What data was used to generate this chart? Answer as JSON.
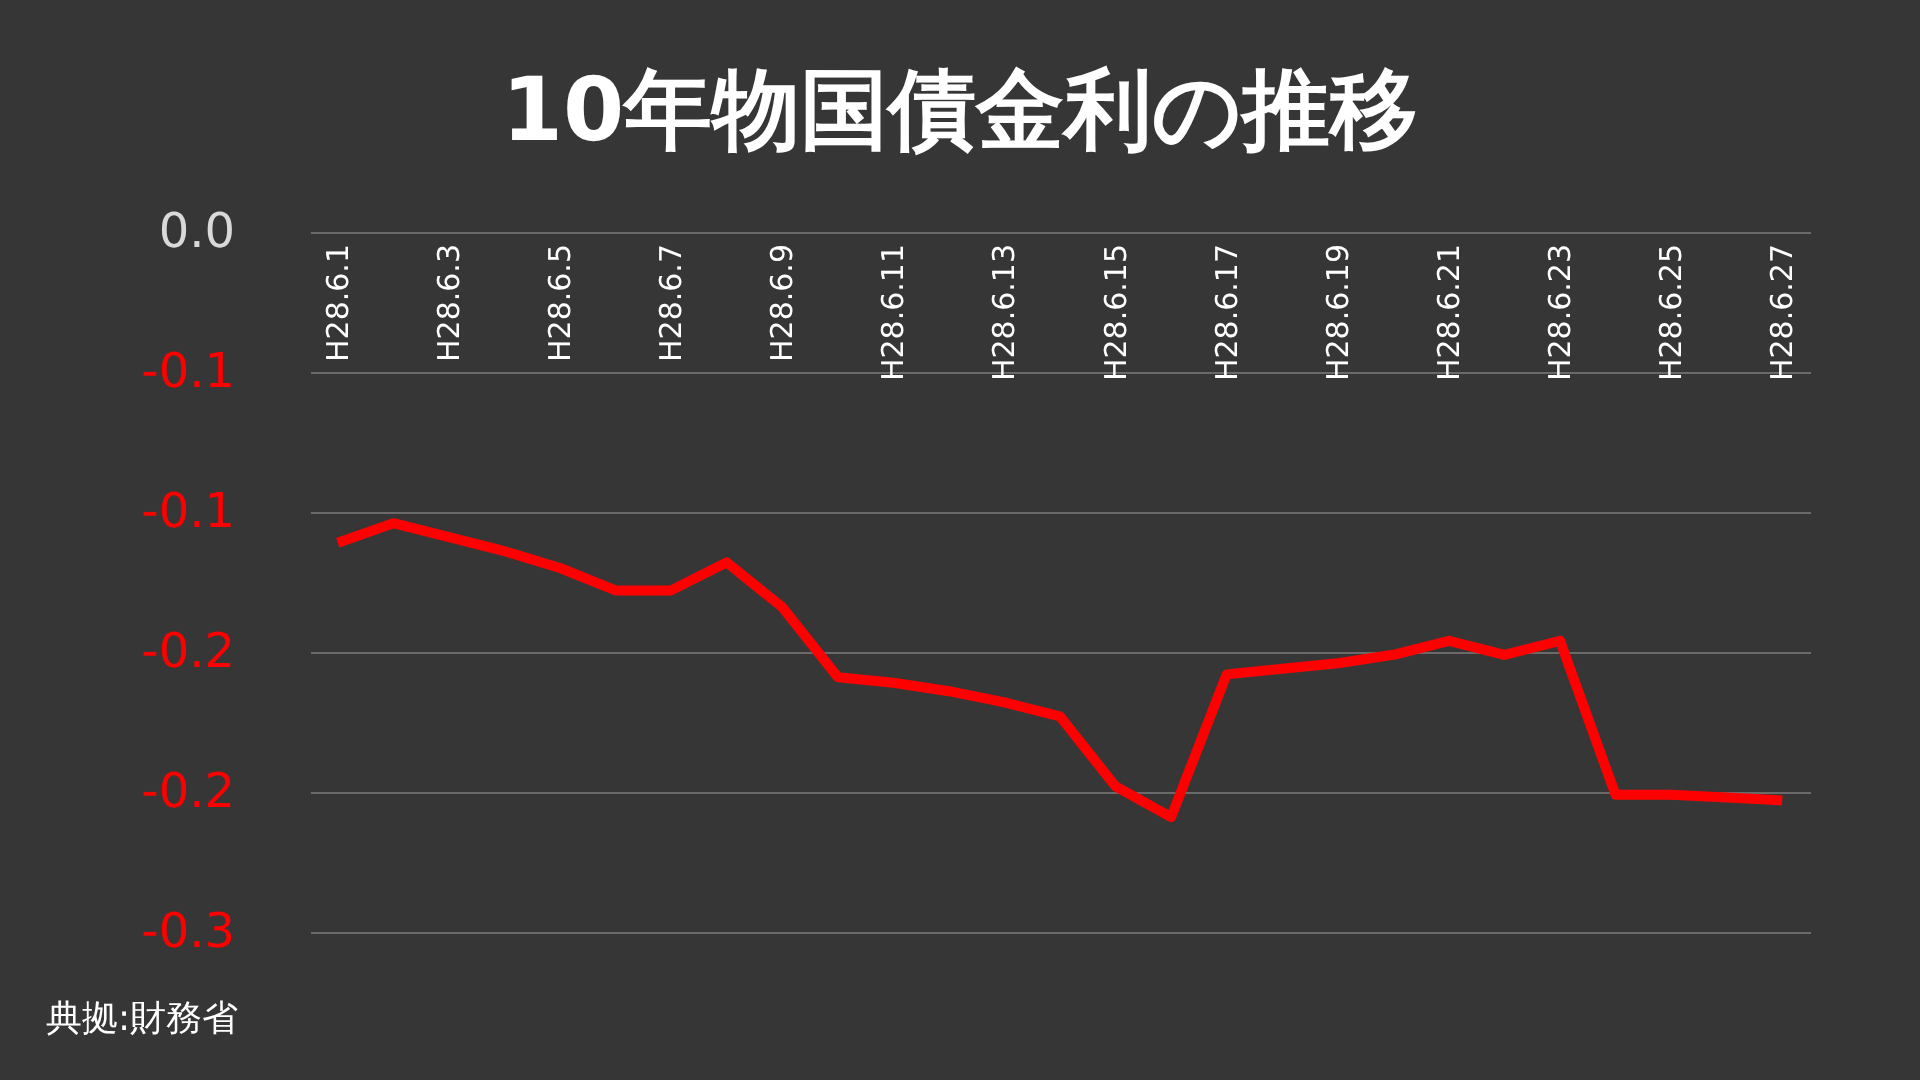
{
  "chart_data": {
    "type": "line",
    "title": "10年物国債金利の推移",
    "categories": [
      "H28.6.1",
      null,
      "H28.6.3",
      null,
      "H28.6.5",
      null,
      "H28.6.7",
      null,
      "H28.6.9",
      null,
      "H28.6.11",
      null,
      "H28.6.13",
      null,
      "H28.6.15",
      null,
      "H28.6.17",
      null,
      "H28.6.19",
      null,
      "H28.6.21",
      null,
      "H28.6.23",
      null,
      "H28.6.25",
      null,
      "H28.6.27"
    ],
    "series": [
      {
        "color": "#ff0000",
        "values": [
          -0.111,
          -0.104,
          -0.109,
          -0.114,
          -0.12,
          -0.128,
          -0.128,
          -0.118,
          -0.134,
          -0.159,
          -0.161,
          -0.164,
          -0.168,
          -0.173,
          -0.198,
          -0.209,
          -0.158,
          -0.156,
          -0.154,
          -0.151,
          -0.146,
          -0.151,
          -0.146,
          -0.201,
          -0.201,
          -0.202,
          -0.203
        ]
      }
    ],
    "ylim": [
      -0.25,
      0
    ],
    "yticks": [
      {
        "value": 0,
        "label": "0.0"
      },
      {
        "value": -0.05,
        "label": "-0.1"
      },
      {
        "value": -0.1,
        "label": "-0.1"
      },
      {
        "value": -0.15,
        "label": "-0.2"
      },
      {
        "value": -0.2,
        "label": "-0.2"
      },
      {
        "value": -0.25,
        "label": "-0.3"
      }
    ],
    "grid": "y",
    "marker": "none",
    "line_style": "solid",
    "annotations": [
      "典拠:財務省"
    ]
  }
}
